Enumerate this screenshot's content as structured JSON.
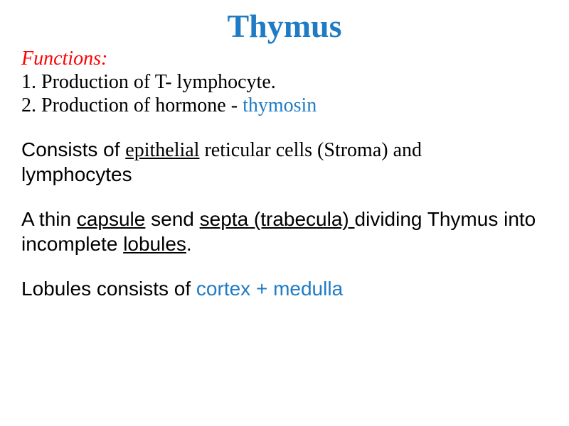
{
  "title": {
    "text": "Thymus",
    "color": "#1f7bc4",
    "fontsize": 46
  },
  "functions": {
    "label": "Functions:",
    "label_color": "#ff0000",
    "label_fontsize": 28,
    "items": [
      {
        "num": "1.",
        "pre": " Production  of T- lymphocyte.",
        "suffix": "",
        "suffix_color": ""
      },
      {
        "num": "2.",
        "pre": " Production of hormone - ",
        "suffix": "thymosin",
        "suffix_color": "#1f7bc4"
      }
    ],
    "item_fontsize": 28,
    "item_color": "#000000"
  },
  "consists": {
    "parts": [
      {
        "text": "Consists of ",
        "underline": false,
        "family": "arial"
      },
      {
        "text": "epithelial",
        "underline": true,
        "family": "times"
      },
      {
        "text": " reticular cells (Stroma) and",
        "underline": false,
        "family": "times"
      }
    ],
    "line2": "lymphocytes",
    "fontsize": 28,
    "color": "#000000"
  },
  "capsule": {
    "parts": [
      {
        "text": "A thin ",
        "underline": false
      },
      {
        "text": "capsule",
        "underline": true
      },
      {
        "text": " send ",
        "underline": false
      },
      {
        "text": "septa (trabecula) ",
        "underline": true
      },
      {
        "text": " dividing Thymus into incomplete ",
        "underline": false
      },
      {
        "text": "lobules",
        "underline": true
      },
      {
        "text": ".",
        "underline": false
      }
    ],
    "fontsize": 28,
    "color": "#000000"
  },
  "lobules": {
    "pre": "Lobules consists of ",
    "highlight": "cortex + medulla",
    "pre_color": "#000000",
    "highlight_color": "#1f7bc4",
    "fontsize": 28
  }
}
